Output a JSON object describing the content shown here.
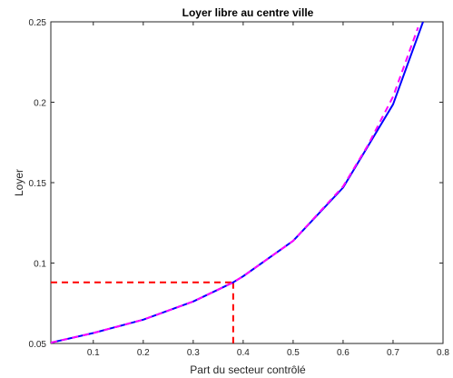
{
  "chart_data": {
    "type": "line",
    "title": "Loyer libre au centre ville",
    "xlabel": "Part du secteur contrôlé",
    "ylabel": "Loyer",
    "xlim": [
      0.015,
      0.8
    ],
    "ylim": [
      0.05,
      0.25
    ],
    "xticks": [
      0.1,
      0.2,
      0.3,
      0.4,
      0.5,
      0.6,
      0.7,
      0.8
    ],
    "xtick_labels": [
      "0.1",
      "0.2",
      "0.3",
      "0.4",
      "0.5",
      "0.6",
      "0.7",
      "0.8"
    ],
    "yticks": [
      0.05,
      0.1,
      0.15,
      0.2,
      0.25
    ],
    "ytick_labels": [
      "0.05",
      "0.1",
      "0.15",
      "0.2",
      "0.25"
    ],
    "grid": false,
    "series": [
      {
        "style": "solid",
        "color": "#0000ff",
        "x": [
          0.015,
          0.1,
          0.2,
          0.3,
          0.35,
          0.38,
          0.4,
          0.5,
          0.6,
          0.7,
          0.76
        ],
        "y": [
          0.0505,
          0.0565,
          0.0648,
          0.0761,
          0.0835,
          0.088,
          0.0918,
          0.1138,
          0.1469,
          0.1987,
          0.25
        ]
      },
      {
        "style": "dashed",
        "color": "#ff00ff",
        "x": [
          0.015,
          0.1,
          0.2,
          0.3,
          0.35,
          0.38,
          0.4,
          0.5,
          0.6,
          0.65,
          0.7,
          0.75
        ],
        "y": [
          0.0505,
          0.0565,
          0.0648,
          0.0761,
          0.0835,
          0.088,
          0.0918,
          0.1138,
          0.1476,
          0.1735,
          0.2035,
          0.2465
        ]
      }
    ],
    "reference_lines": {
      "color": "#ff0000",
      "style": "dashed",
      "x": 0.38,
      "y": 0.088
    }
  }
}
